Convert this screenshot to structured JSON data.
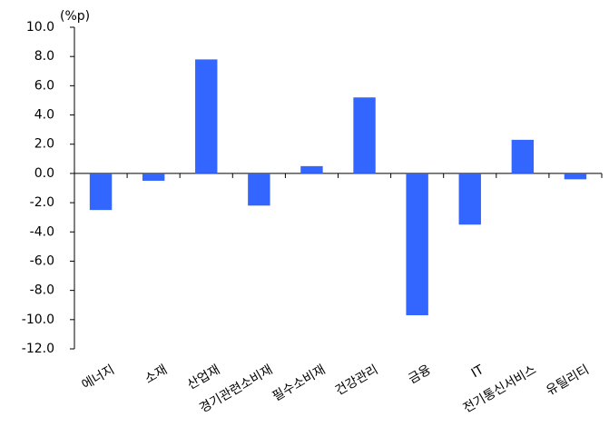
{
  "chart_data": {
    "type": "bar",
    "y_axis_label": "(%p)",
    "categories": [
      "에너지",
      "소재",
      "산업재",
      "경기관련소비재",
      "필수소비재",
      "건강관리",
      "금융",
      "IT",
      "전기통신서비스",
      "유틸리티"
    ],
    "values": [
      -2.5,
      -0.5,
      7.8,
      -2.2,
      0.5,
      5.2,
      -9.7,
      -3.5,
      2.3,
      -0.4
    ],
    "color": "#3366ff",
    "ylim": [
      -12,
      10
    ],
    "yticks": [
      {
        "value": 10,
        "label": "10.0"
      },
      {
        "value": 8,
        "label": "8.0"
      },
      {
        "value": 6,
        "label": "6.0"
      },
      {
        "value": 4,
        "label": "4.0"
      },
      {
        "value": 2,
        "label": "2.0"
      },
      {
        "value": 0,
        "label": "0.0"
      },
      {
        "value": -2,
        "label": "-2.0"
      },
      {
        "value": -4,
        "label": "-4.0"
      },
      {
        "value": -6,
        "label": "-6.0"
      },
      {
        "value": -8,
        "label": "-8.0"
      },
      {
        "value": -10,
        "label": "-10.0"
      },
      {
        "value": -12,
        "label": "-12.0"
      }
    ]
  }
}
